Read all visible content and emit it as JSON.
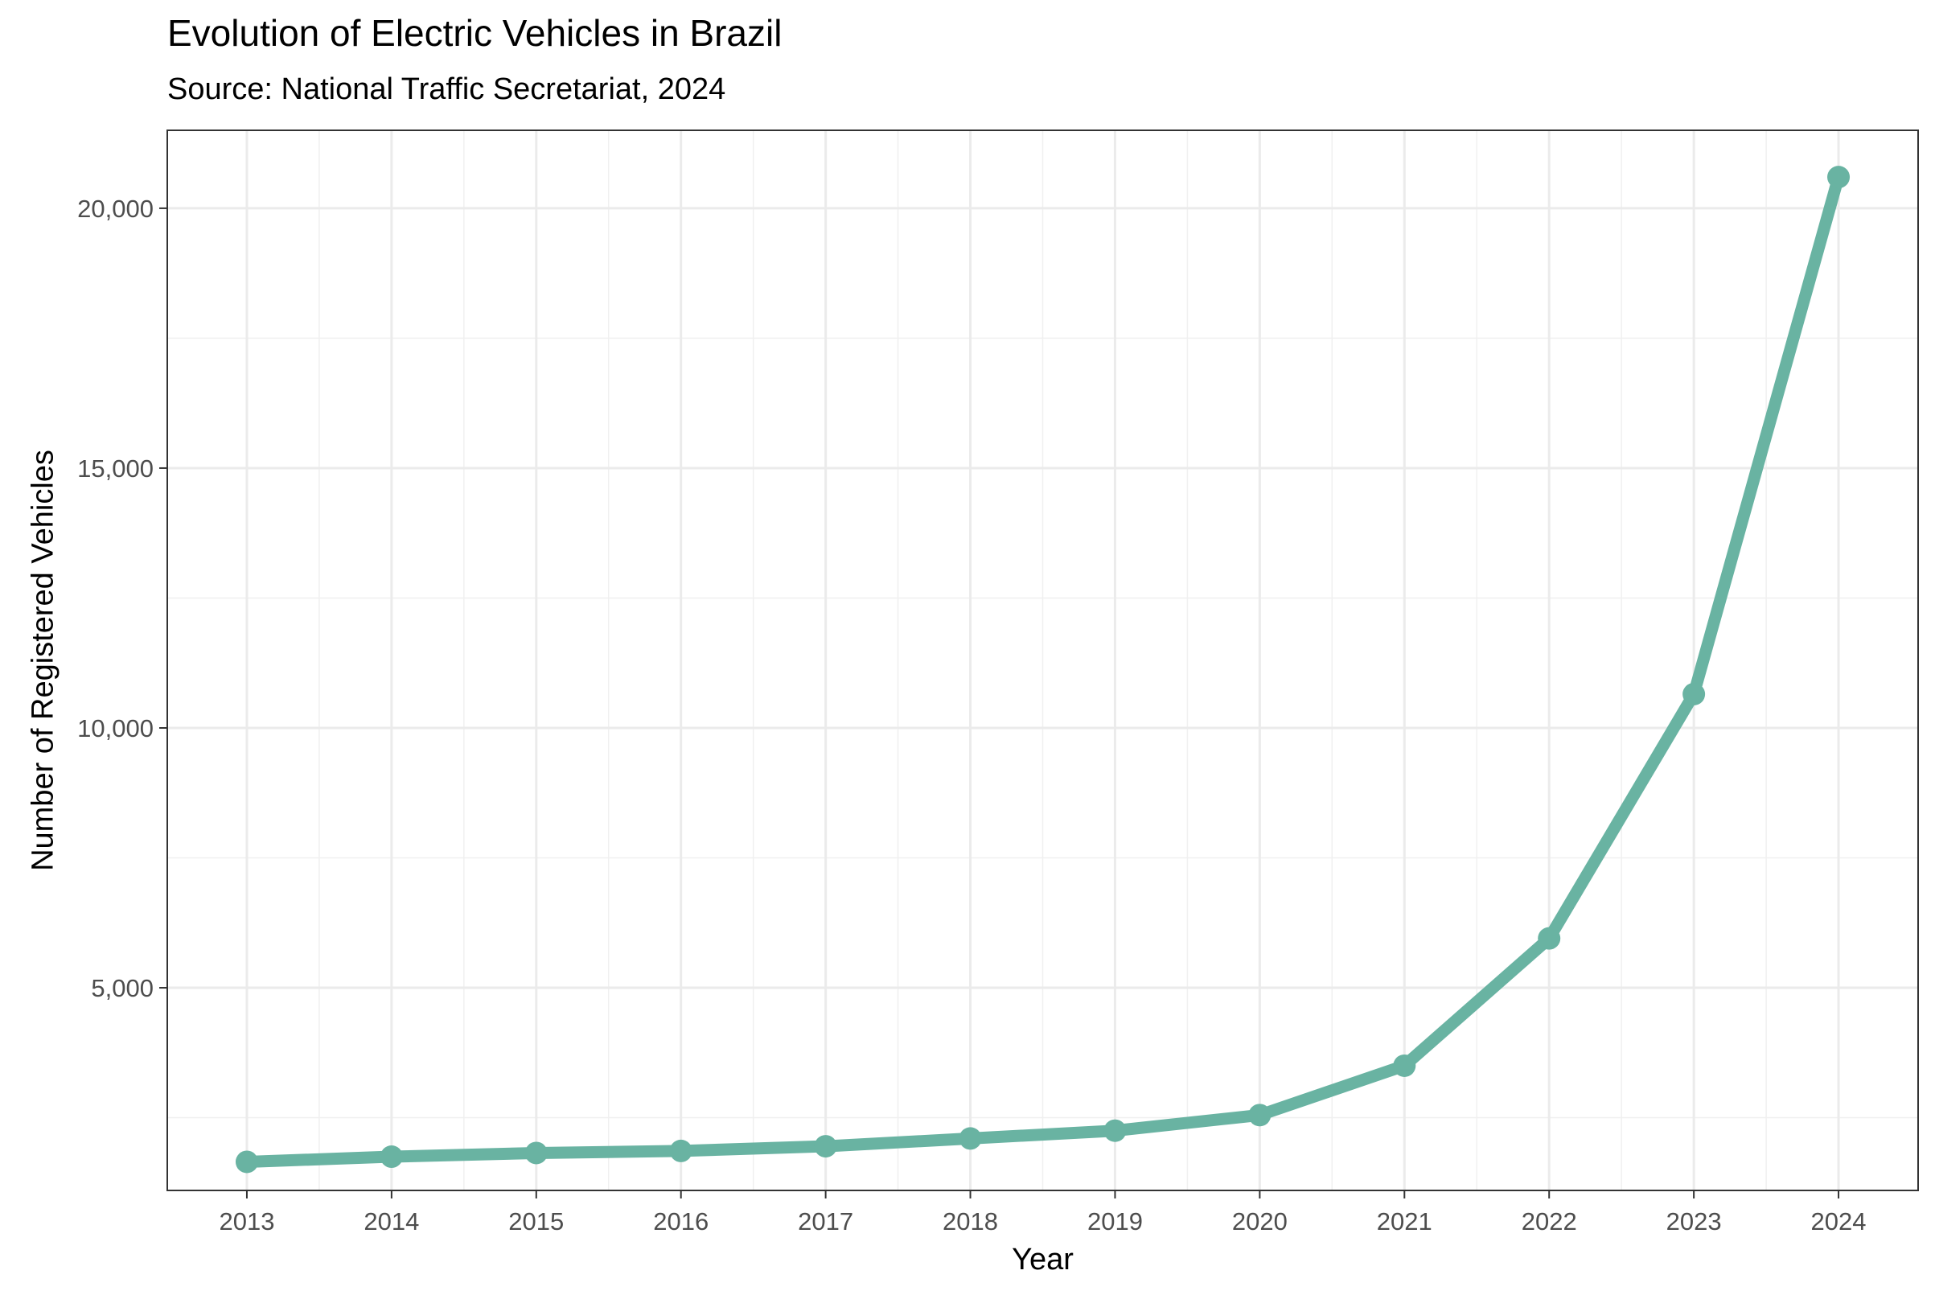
{
  "chart_data": {
    "type": "line",
    "title": "Evolution of Electric Vehicles in Brazil",
    "subtitle": "Source: National Traffic Secretariat, 2024",
    "xlabel": "Year",
    "ylabel": "Number of Registered Vehicles",
    "x": [
      2013,
      2014,
      2015,
      2016,
      2017,
      2018,
      2019,
      2020,
      2021,
      2022,
      2023,
      2024
    ],
    "x_tick_labels": [
      "2013",
      "2014",
      "2015",
      "2016",
      "2017",
      "2018",
      "2019",
      "2020",
      "2021",
      "2022",
      "2023",
      "2024"
    ],
    "y_ticks": [
      5000,
      10000,
      15000,
      20000
    ],
    "y_tick_labels": [
      "5,000",
      "10,000",
      "15,000",
      "20,000"
    ],
    "xlim": [
      2012.45,
      2024.55
    ],
    "ylim": [
      1100,
      21500
    ],
    "series": [
      {
        "values": [
          1650,
          1750,
          1820,
          1860,
          1950,
          2100,
          2250,
          2550,
          3500,
          5950,
          10650,
          20600
        ],
        "color": "#69b3a2"
      }
    ],
    "grid": true,
    "legend": "none"
  }
}
